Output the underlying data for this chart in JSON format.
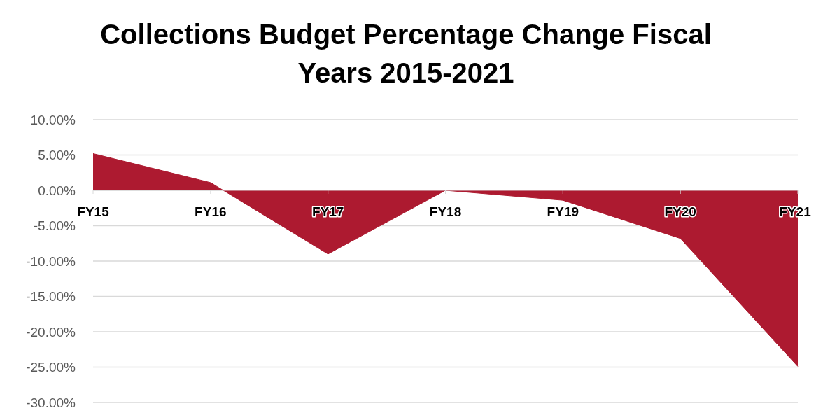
{
  "chart_data": {
    "type": "area",
    "title": "Collections Budget Percentage Change Fiscal Years 2015-2021",
    "categories": [
      "FY15",
      "FY16",
      "FY17",
      "FY18",
      "FY19",
      "FY20",
      "FY21"
    ],
    "series": [
      {
        "color": "#ad1a30",
        "values": [
          5.2,
          1.1,
          -9.0,
          0,
          -1.4,
          -6.8,
          -24.9
        ]
      }
    ],
    "ylim": [
      -30,
      10
    ],
    "yticks": [
      {
        "value": 10,
        "label": "10.00%"
      },
      {
        "value": 5,
        "label": "5.00%"
      },
      {
        "value": 0,
        "label": "0.00%"
      },
      {
        "value": -5,
        "label": "-5.00%"
      },
      {
        "value": -10,
        "label": "-10.00%"
      },
      {
        "value": -15,
        "label": "-15.00%"
      },
      {
        "value": -20,
        "label": "-20.00%"
      },
      {
        "value": -25,
        "label": "-25.00%"
      },
      {
        "value": -30,
        "label": "-30.00%"
      }
    ],
    "grid": "y"
  }
}
